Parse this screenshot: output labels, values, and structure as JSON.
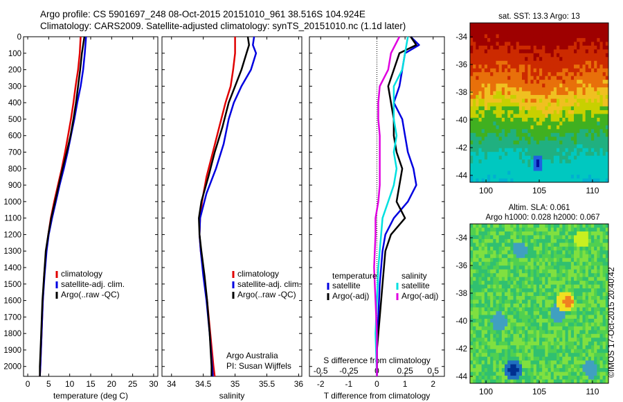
{
  "header": {
    "line1": "Argo profile: CS 5901697_248 08-Oct-2015 20151010_961 38.516S 104.924E",
    "line2": "Climatology: CARS2009. Satellite-adjusted climatology: synTS_20151010.nc (1.1d later)"
  },
  "credit": "©IMOS 17-Oct-2015 20:40:42",
  "chart_data": [
    {
      "type": "line",
      "panel": "temperature",
      "xlabel": "temperature (deg C)",
      "ylabel": "",
      "xlim": [
        -1,
        31
      ],
      "xticks": [
        "0",
        "5",
        "10",
        "15",
        "20",
        "25",
        "30"
      ],
      "ylim": [
        2060,
        0
      ],
      "yticks": [
        "0",
        "100",
        "200",
        "300",
        "400",
        "500",
        "600",
        "700",
        "800",
        "900",
        "1000",
        "1100",
        "1200",
        "1300",
        "1400",
        "1500",
        "1600",
        "1700",
        "1800",
        "1900",
        "2000"
      ],
      "legend": [
        "climatology",
        "satellite-adj. clim.",
        "Argo(..raw -QC)"
      ],
      "series": [
        {
          "name": "climatology",
          "color": "#e00000",
          "points": [
            [
              12.6,
              0
            ],
            [
              12.4,
              100
            ],
            [
              12.0,
              200
            ],
            [
              11.4,
              300
            ],
            [
              10.9,
              400
            ],
            [
              10.3,
              500
            ],
            [
              9.6,
              600
            ],
            [
              8.9,
              700
            ],
            [
              8.1,
              800
            ],
            [
              7.2,
              900
            ],
            [
              6.3,
              1000
            ],
            [
              5.5,
              1100
            ],
            [
              4.9,
              1200
            ],
            [
              4.4,
              1300
            ],
            [
              3.9,
              1450
            ],
            [
              3.6,
              1600
            ],
            [
              3.3,
              1800
            ],
            [
              3.0,
              2000
            ],
            [
              2.9,
              2060
            ]
          ]
        },
        {
          "name": "satellite-adj. clim.",
          "color": "#0000e0",
          "points": [
            [
              13.9,
              0
            ],
            [
              13.6,
              100
            ],
            [
              13.2,
              200
            ],
            [
              12.6,
              300
            ],
            [
              11.8,
              400
            ],
            [
              11.1,
              500
            ],
            [
              10.3,
              600
            ],
            [
              9.5,
              700
            ],
            [
              8.6,
              800
            ],
            [
              7.6,
              900
            ],
            [
              6.7,
              1000
            ],
            [
              5.8,
              1100
            ],
            [
              5.0,
              1200
            ],
            [
              4.5,
              1300
            ],
            [
              4.0,
              1450
            ],
            [
              3.6,
              1600
            ],
            [
              3.3,
              1800
            ],
            [
              3.0,
              2000
            ],
            [
              2.9,
              2060
            ]
          ]
        },
        {
          "name": "Argo(..raw -QC)",
          "color": "#000000",
          "points": [
            [
              13.5,
              0
            ],
            [
              13.2,
              50
            ],
            [
              12.9,
              100
            ],
            [
              12.5,
              200
            ],
            [
              12.0,
              300
            ],
            [
              11.5,
              400
            ],
            [
              10.9,
              500
            ],
            [
              10.2,
              600
            ],
            [
              9.3,
              700
            ],
            [
              8.3,
              800
            ],
            [
              7.4,
              900
            ],
            [
              6.5,
              1000
            ],
            [
              5.6,
              1100
            ],
            [
              4.9,
              1200
            ],
            [
              4.3,
              1300
            ],
            [
              3.9,
              1450
            ],
            [
              3.5,
              1600
            ],
            [
              3.2,
              1800
            ],
            [
              2.9,
              2000
            ],
            [
              2.9,
              2060
            ]
          ]
        }
      ]
    },
    {
      "type": "line",
      "panel": "salinity",
      "xlabel": "salinity",
      "ylabel": "",
      "xlim": [
        33.85,
        36.05
      ],
      "xticks": [
        "34",
        "34.5",
        "35",
        "35.5",
        "36"
      ],
      "ylim": [
        2060,
        0
      ],
      "legend": [
        "climatology",
        "satellite-adj. clim.",
        "Argo(..raw -QC)"
      ],
      "annotation": [
        "Argo Australia",
        "PI: Susan Wijffels"
      ],
      "series": [
        {
          "name": "climatology",
          "color": "#e00000",
          "points": [
            [
              35.0,
              0
            ],
            [
              35.0,
              100
            ],
            [
              34.97,
              200
            ],
            [
              34.93,
              300
            ],
            [
              34.85,
              400
            ],
            [
              34.75,
              550
            ],
            [
              34.65,
              700
            ],
            [
              34.55,
              850
            ],
            [
              34.48,
              1000
            ],
            [
              34.45,
              1100
            ],
            [
              34.44,
              1200
            ],
            [
              34.46,
              1300
            ],
            [
              34.51,
              1450
            ],
            [
              34.56,
              1600
            ],
            [
              34.61,
              1800
            ],
            [
              34.66,
              2000
            ],
            [
              34.68,
              2060
            ]
          ]
        },
        {
          "name": "satellite-adj. clim.",
          "color": "#0000e0",
          "points": [
            [
              35.3,
              0
            ],
            [
              35.28,
              50
            ],
            [
              35.33,
              100
            ],
            [
              35.25,
              200
            ],
            [
              35.1,
              300
            ],
            [
              34.98,
              400
            ],
            [
              34.9,
              500
            ],
            [
              34.82,
              650
            ],
            [
              34.7,
              800
            ],
            [
              34.55,
              950
            ],
            [
              34.45,
              1100
            ],
            [
              34.44,
              1200
            ],
            [
              34.46,
              1300
            ],
            [
              34.5,
              1450
            ],
            [
              34.55,
              1600
            ],
            [
              34.6,
              1800
            ],
            [
              34.64,
              2000
            ],
            [
              34.65,
              2060
            ]
          ]
        },
        {
          "name": "Argo(..raw -QC)",
          "color": "#000000",
          "points": [
            [
              35.2,
              0
            ],
            [
              35.22,
              50
            ],
            [
              35.18,
              100
            ],
            [
              35.1,
              200
            ],
            [
              35.0,
              300
            ],
            [
              34.9,
              400
            ],
            [
              34.8,
              550
            ],
            [
              34.68,
              700
            ],
            [
              34.58,
              850
            ],
            [
              34.47,
              1000
            ],
            [
              34.43,
              1100
            ],
            [
              34.44,
              1200
            ],
            [
              34.47,
              1300
            ],
            [
              34.52,
              1450
            ],
            [
              34.56,
              1600
            ],
            [
              34.6,
              1800
            ],
            [
              34.63,
              2000
            ],
            [
              34.63,
              2060
            ]
          ]
        }
      ]
    },
    {
      "type": "line",
      "panel": "difference",
      "xlabel": "T difference from climatology",
      "xlabel_top": "S difference from climatology",
      "xlim": [
        -2.4,
        2.4
      ],
      "xticks": [
        "-2",
        "-1",
        "0",
        "1",
        "2"
      ],
      "xticks_top": [
        "-0.5",
        "-0.25",
        "0",
        "0.25",
        "0.5"
      ],
      "ylim": [
        2060,
        0
      ],
      "legend_groups": [
        {
          "title": "temperature",
          "items": [
            "satellite",
            "Argo(-adj)"
          ]
        },
        {
          "title": "salinity",
          "items": [
            "satellite",
            "Argo(-adj)"
          ]
        }
      ],
      "series": [
        {
          "name": "temperature satellite",
          "color": "#0000e0",
          "points": [
            [
              1.2,
              0
            ],
            [
              1.5,
              50
            ],
            [
              1.0,
              100
            ],
            [
              0.9,
              200
            ],
            [
              0.8,
              300
            ],
            [
              0.6,
              400
            ],
            [
              0.9,
              500
            ],
            [
              1.0,
              600
            ],
            [
              1.1,
              700
            ],
            [
              1.3,
              800
            ],
            [
              1.4,
              900
            ],
            [
              1.1,
              1000
            ],
            [
              0.6,
              1100
            ],
            [
              0.3,
              1200
            ],
            [
              0.2,
              1300
            ],
            [
              0.1,
              1500
            ],
            [
              0.05,
              1700
            ],
            [
              0.0,
              1900
            ],
            [
              0.0,
              2060
            ]
          ]
        },
        {
          "name": "temperature Argo(-adj)",
          "color": "#000000",
          "points": [
            [
              1.2,
              0
            ],
            [
              1.4,
              50
            ],
            [
              0.8,
              100
            ],
            [
              0.6,
              200
            ],
            [
              0.4,
              300
            ],
            [
              0.5,
              400
            ],
            [
              0.6,
              500
            ],
            [
              0.6,
              600
            ],
            [
              0.7,
              700
            ],
            [
              0.9,
              800
            ],
            [
              0.8,
              900
            ],
            [
              0.7,
              1000
            ],
            [
              1.0,
              1100
            ],
            [
              0.5,
              1200
            ],
            [
              0.3,
              1300
            ],
            [
              0.2,
              1500
            ],
            [
              0.1,
              1700
            ],
            [
              0.0,
              1900
            ],
            [
              0.0,
              2060
            ]
          ]
        },
        {
          "name": "salinity satellite",
          "color": "#00e0e0",
          "points": [
            [
              1.1,
              0
            ],
            [
              1.0,
              100
            ],
            [
              0.9,
              200
            ],
            [
              0.6,
              300
            ],
            [
              0.6,
              400
            ],
            [
              0.6,
              500
            ],
            [
              0.7,
              600
            ],
            [
              0.6,
              700
            ],
            [
              0.7,
              800
            ],
            [
              0.6,
              900
            ],
            [
              0.4,
              1000
            ],
            [
              0.2,
              1100
            ],
            [
              0.15,
              1200
            ],
            [
              0.05,
              1400
            ],
            [
              0.0,
              1600
            ],
            [
              -0.05,
              1800
            ],
            [
              0.0,
              2060
            ]
          ]
        },
        {
          "name": "salinity Argo(-adj)",
          "color": "#e000e0",
          "points": [
            [
              0.8,
              0
            ],
            [
              0.5,
              100
            ],
            [
              0.4,
              200
            ],
            [
              0.1,
              300
            ],
            [
              0.05,
              400
            ],
            [
              0.05,
              500
            ],
            [
              0.1,
              600
            ],
            [
              0.1,
              700
            ],
            [
              0.1,
              800
            ],
            [
              0.1,
              900
            ],
            [
              0.05,
              1000
            ],
            [
              -0.05,
              1100
            ],
            [
              -0.05,
              1200
            ],
            [
              -0.1,
              1400
            ],
            [
              -0.05,
              1600
            ],
            [
              0.0,
              1800
            ],
            [
              0.0,
              2060
            ]
          ]
        }
      ]
    },
    {
      "type": "heatmap",
      "panel": "sst-map",
      "title": "sat. SST: 13.3 Argo: 13",
      "xticks": [
        "100",
        "105",
        "110"
      ],
      "yticks": [
        "-34",
        "-36",
        "-38",
        "-40",
        "-42",
        "-44"
      ],
      "xlim": [
        98.5,
        111.5
      ],
      "ylim": [
        -44.5,
        -33
      ]
    },
    {
      "type": "heatmap",
      "panel": "sla-map",
      "title": [
        "Altim. SLA: 0.061",
        "Argo h1000: 0.028 h2000: 0.067"
      ],
      "xticks": [
        "100",
        "105",
        "110"
      ],
      "yticks": [
        "-34",
        "-36",
        "-38",
        "-40",
        "-42",
        "-44"
      ],
      "xlim": [
        98.5,
        111.5
      ],
      "ylim": [
        -44.5,
        -33
      ]
    }
  ]
}
